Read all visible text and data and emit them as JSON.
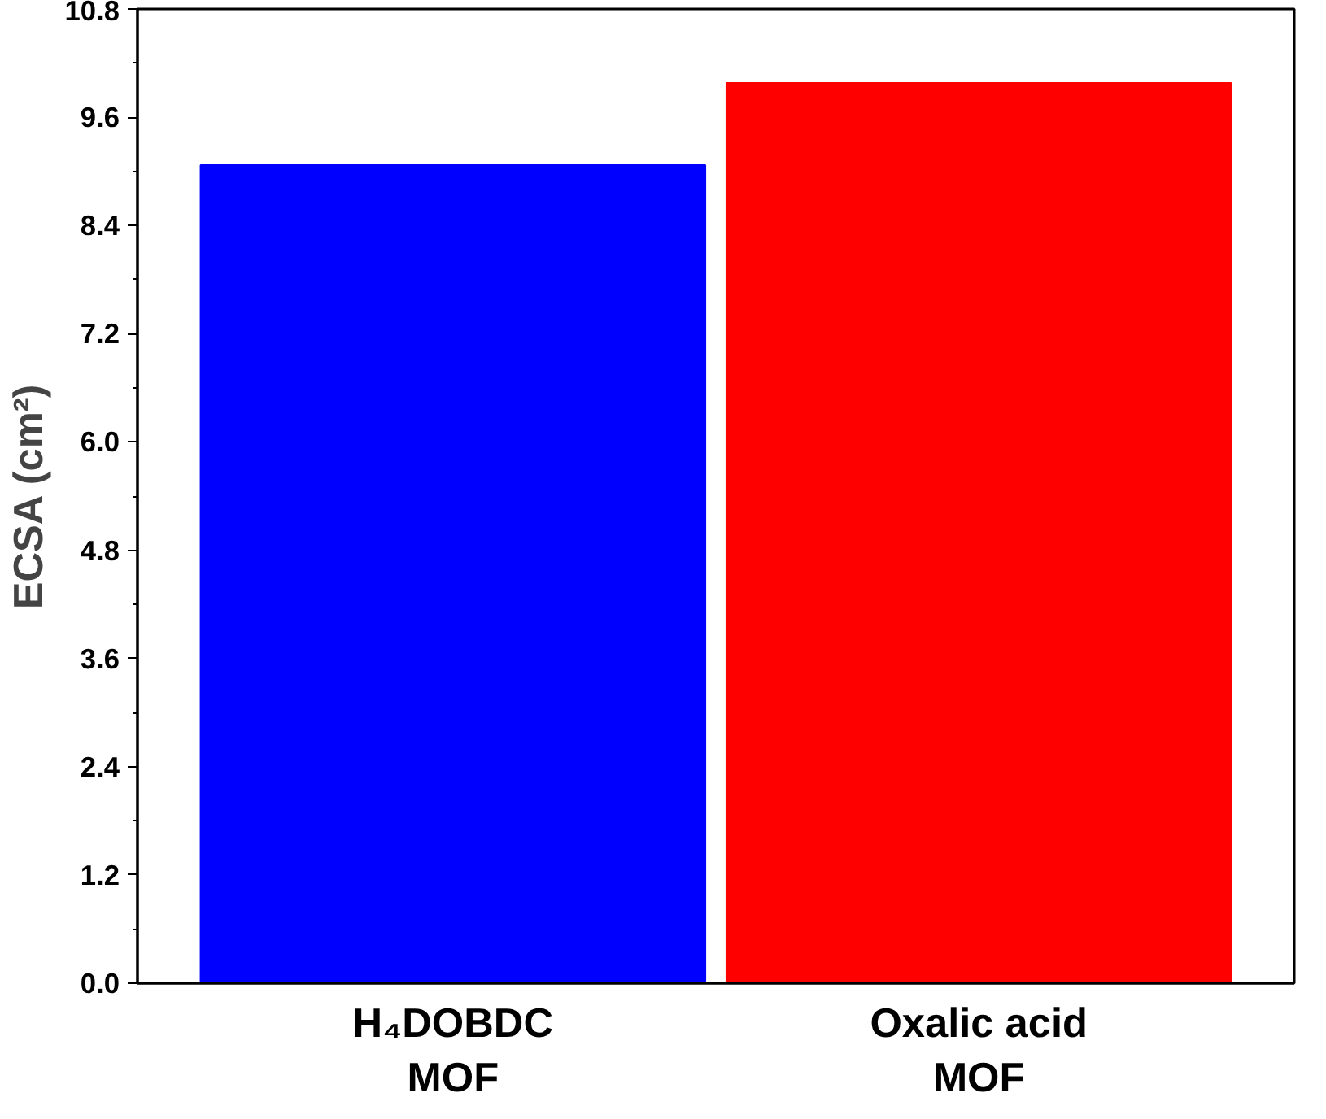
{
  "chart_data": {
    "type": "bar",
    "ylabel": "ECSA (cm²)",
    "categories": [
      "H₄DOBDC\nMOF",
      "Oxalic acid\nMOF"
    ],
    "colors": [
      "#0000ff",
      "#ff0000"
    ],
    "values": [
      9.07,
      9.98
    ],
    "ylim": [
      0,
      10.8
    ],
    "yticks": [
      {
        "value": 0,
        "label": "0.0"
      },
      {
        "value": 1.2,
        "label": "1.2"
      },
      {
        "value": 2.4,
        "label": "2.4"
      },
      {
        "value": 3.6,
        "label": "3.6"
      },
      {
        "value": 4.8,
        "label": "4.8"
      },
      {
        "value": 6.0,
        "label": "6.0"
      },
      {
        "value": 7.2,
        "label": "7.2"
      },
      {
        "value": 8.4,
        "label": "8.4"
      },
      {
        "value": 9.6,
        "label": "9.6"
      },
      {
        "value": 10.8,
        "label": "10.8"
      }
    ],
    "grid": false
  }
}
